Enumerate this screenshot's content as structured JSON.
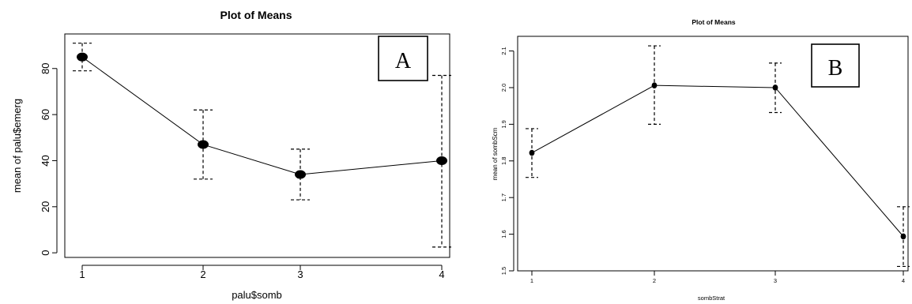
{
  "chart_data": [
    {
      "type": "line",
      "title": "Plot of Means",
      "xlabel": "palu$somb",
      "ylabel": "mean of palu$emerg",
      "categories": [
        "1",
        "2",
        "3",
        "4"
      ],
      "values": [
        85,
        47,
        34,
        40
      ],
      "error_low": [
        79,
        32,
        23,
        2.5
      ],
      "error_high": [
        91,
        62,
        45,
        77
      ],
      "ylim": [
        -2,
        95
      ],
      "yticks": [
        0,
        20,
        40,
        60,
        80
      ],
      "ytick_labels": [
        "0",
        "20",
        "40",
        "60",
        "80"
      ],
      "panel_label": "A",
      "grid": false
    },
    {
      "type": "line",
      "title": "Plot of Means",
      "xlabel": "sombStrat",
      "ylabel": "mean of sombScm",
      "categories": [
        "1",
        "2",
        "3",
        "4"
      ],
      "values": [
        1.822,
        2.006,
        2.0,
        1.594
      ],
      "error_low": [
        1.755,
        1.9,
        1.932,
        1.512
      ],
      "error_high": [
        1.888,
        2.114,
        2.067,
        1.675
      ],
      "ylim": [
        1.5,
        2.14
      ],
      "yticks": [
        1.5,
        1.6,
        1.7,
        1.8,
        1.9,
        2.0,
        2.1
      ],
      "ytick_labels": [
        "1.5",
        "1.6",
        "1.7",
        "1.8",
        "1.9",
        "2.0",
        "2.1"
      ],
      "panel_label": "B",
      "grid": false
    }
  ]
}
